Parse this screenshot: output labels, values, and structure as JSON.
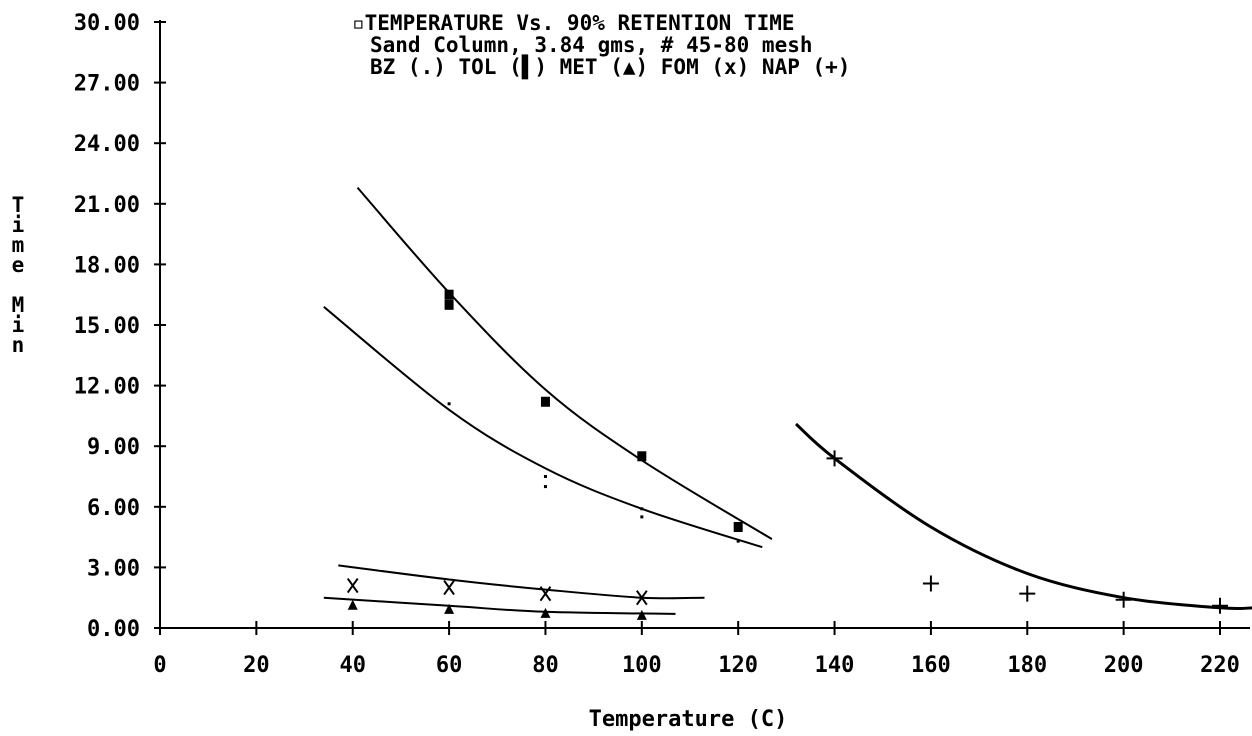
{
  "chart_data": {
    "type": "scatter",
    "title_lines": [
      "▫TEMPERATURE Vs. 90% RETENTION TIME",
      "Sand Column, 3.84 gms, # 45-80 mesh",
      "BZ (.) TOL (▌) MET (▲) FOM (x) NAP (+)"
    ],
    "xlabel": "Temperature (C)",
    "ylabel_chars": [
      "T",
      "i",
      "m",
      "e",
      "",
      "M",
      "i",
      "n"
    ],
    "xlim": [
      0,
      220
    ],
    "ylim": [
      0,
      30
    ],
    "x_ticks": [
      0,
      20,
      40,
      60,
      80,
      100,
      120,
      140,
      160,
      180,
      200,
      220
    ],
    "x_tick_labels": [
      "0",
      "20",
      "40",
      "60",
      "80",
      "100",
      "120",
      "140",
      "160",
      "180",
      "200",
      "220"
    ],
    "y_ticks": [
      0,
      3,
      6,
      9,
      12,
      15,
      18,
      21,
      24,
      27,
      30
    ],
    "y_tick_labels": [
      "0.00",
      "3.00",
      "6.00",
      "9.00",
      "12.00",
      "15.00",
      "18.00",
      "21.00",
      "24.00",
      "27.00",
      "30.00"
    ],
    "grid": false,
    "series": [
      {
        "name": "BZ",
        "marker": "dot",
        "points": [
          [
            60,
            11.1
          ],
          [
            80,
            7.5
          ],
          [
            80,
            7.0
          ],
          [
            100,
            5.9
          ],
          [
            100,
            5.5
          ],
          [
            120,
            4.3
          ]
        ],
        "fit": [
          [
            34,
            15.9
          ],
          [
            60,
            10.8
          ],
          [
            80,
            7.9
          ],
          [
            100,
            5.9
          ],
          [
            125,
            4.0
          ]
        ]
      },
      {
        "name": "TOL",
        "marker": "square",
        "points": [
          [
            60,
            16.5
          ],
          [
            60,
            16.0
          ],
          [
            80,
            11.2
          ],
          [
            100,
            8.5
          ],
          [
            120,
            5.0
          ]
        ],
        "fit": [
          [
            41,
            21.8
          ],
          [
            60,
            16.6
          ],
          [
            80,
            11.8
          ],
          [
            100,
            8.3
          ],
          [
            127,
            4.4
          ]
        ]
      },
      {
        "name": "MET",
        "marker": "triangle",
        "points": [
          [
            40,
            1.1
          ],
          [
            60,
            0.9
          ],
          [
            80,
            0.7
          ],
          [
            100,
            0.6
          ]
        ],
        "fit": [
          [
            34,
            1.5
          ],
          [
            60,
            1.1
          ],
          [
            80,
            0.8
          ],
          [
            107,
            0.7
          ]
        ]
      },
      {
        "name": "FOM",
        "marker": "x",
        "points": [
          [
            40,
            2.1
          ],
          [
            60,
            2.0
          ],
          [
            80,
            1.7
          ],
          [
            100,
            1.5
          ]
        ],
        "fit": [
          [
            37,
            3.1
          ],
          [
            60,
            2.4
          ],
          [
            80,
            1.9
          ],
          [
            100,
            1.5
          ],
          [
            113,
            1.5
          ]
        ]
      },
      {
        "name": "NAP",
        "marker": "plus",
        "points": [
          [
            140,
            8.4
          ],
          [
            160,
            2.2
          ],
          [
            180,
            1.7
          ],
          [
            200,
            1.4
          ],
          [
            220,
            1.1
          ]
        ],
        "fit": [
          [
            132,
            10.1
          ],
          [
            140,
            8.4
          ],
          [
            160,
            5.0
          ],
          [
            180,
            2.7
          ],
          [
            200,
            1.5
          ],
          [
            220,
            1.0
          ],
          [
            227,
            1.0
          ]
        ]
      }
    ]
  }
}
